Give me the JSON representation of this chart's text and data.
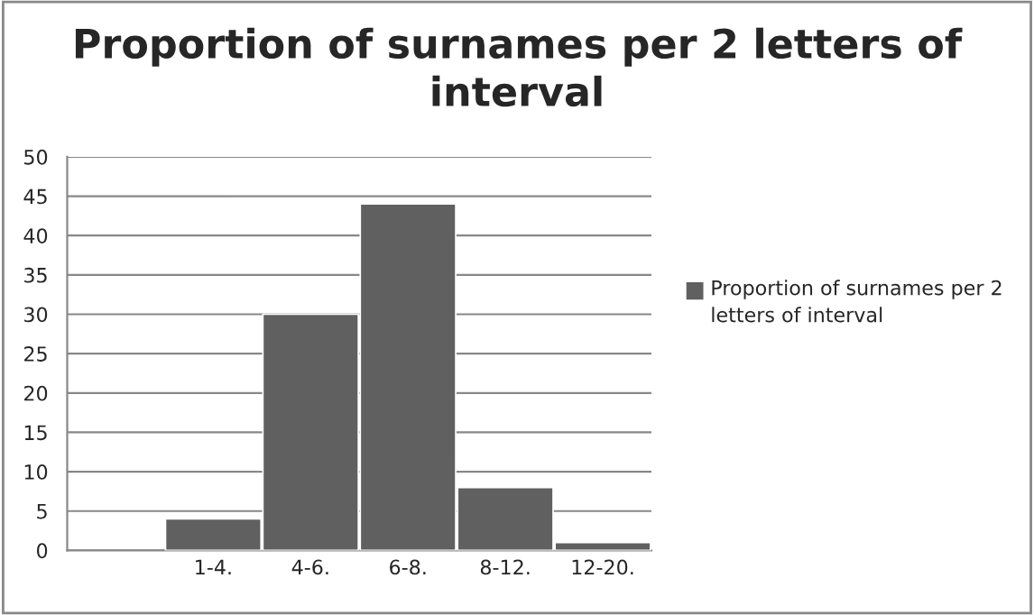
{
  "chart_data": {
    "type": "bar",
    "title": "Proportion of surnames per 2 letters of interval",
    "categories": [
      null,
      "1-4.",
      "4-6.",
      "6-8.",
      "8-12.",
      "12-20."
    ],
    "series": [
      {
        "name": "Proportion of surnames per 2 letters of interval",
        "color": "#606060",
        "values": [
          null,
          4,
          30,
          44,
          8,
          1
        ]
      }
    ],
    "ylim": [
      0,
      50
    ],
    "yticks": [
      0,
      5,
      10,
      15,
      20,
      25,
      30,
      35,
      40,
      45,
      50
    ],
    "grid": "y",
    "legend": "right"
  }
}
